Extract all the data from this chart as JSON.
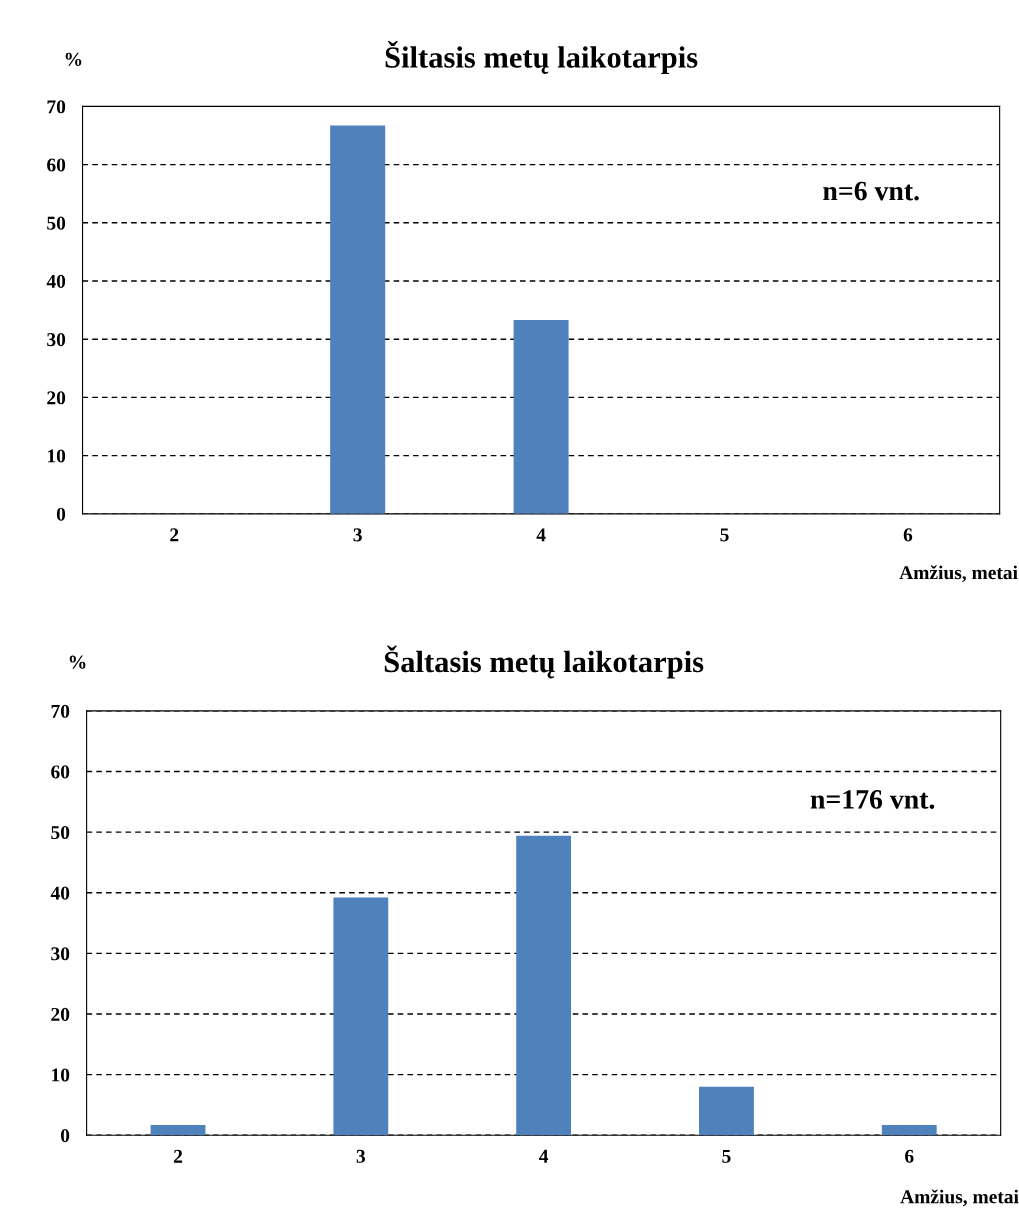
{
  "chart_data": [
    {
      "type": "bar",
      "title": "Šiltasis metų laikotarpis",
      "ylabel": "%",
      "xlabel": "Amžius, metai",
      "categories": [
        "2",
        "3",
        "4",
        "5",
        "6"
      ],
      "values": [
        0,
        66.7,
        33.3,
        0,
        0
      ],
      "color": "#4f81bd",
      "ylim": [
        0,
        70
      ],
      "yticks": [
        0,
        10,
        20,
        30,
        40,
        50,
        60,
        70
      ],
      "grid": "y",
      "line_style": "dashed",
      "annotations": [
        "n=6 vnt."
      ]
    },
    {
      "type": "bar",
      "title": "Šaltasis metų laikotarpis",
      "ylabel": "%",
      "xlabel": "Amžius, metai",
      "categories": [
        "2",
        "3",
        "4",
        "5",
        "6"
      ],
      "values": [
        1.7,
        39.2,
        49.4,
        8.0,
        1.7
      ],
      "color": "#4f81bd",
      "ylim": [
        0,
        70
      ],
      "yticks": [
        0,
        10,
        20,
        30,
        40,
        50,
        60,
        70
      ],
      "grid": "y",
      "line_style": "dashed",
      "annotations": [
        "n=176 vnt."
      ]
    }
  ]
}
